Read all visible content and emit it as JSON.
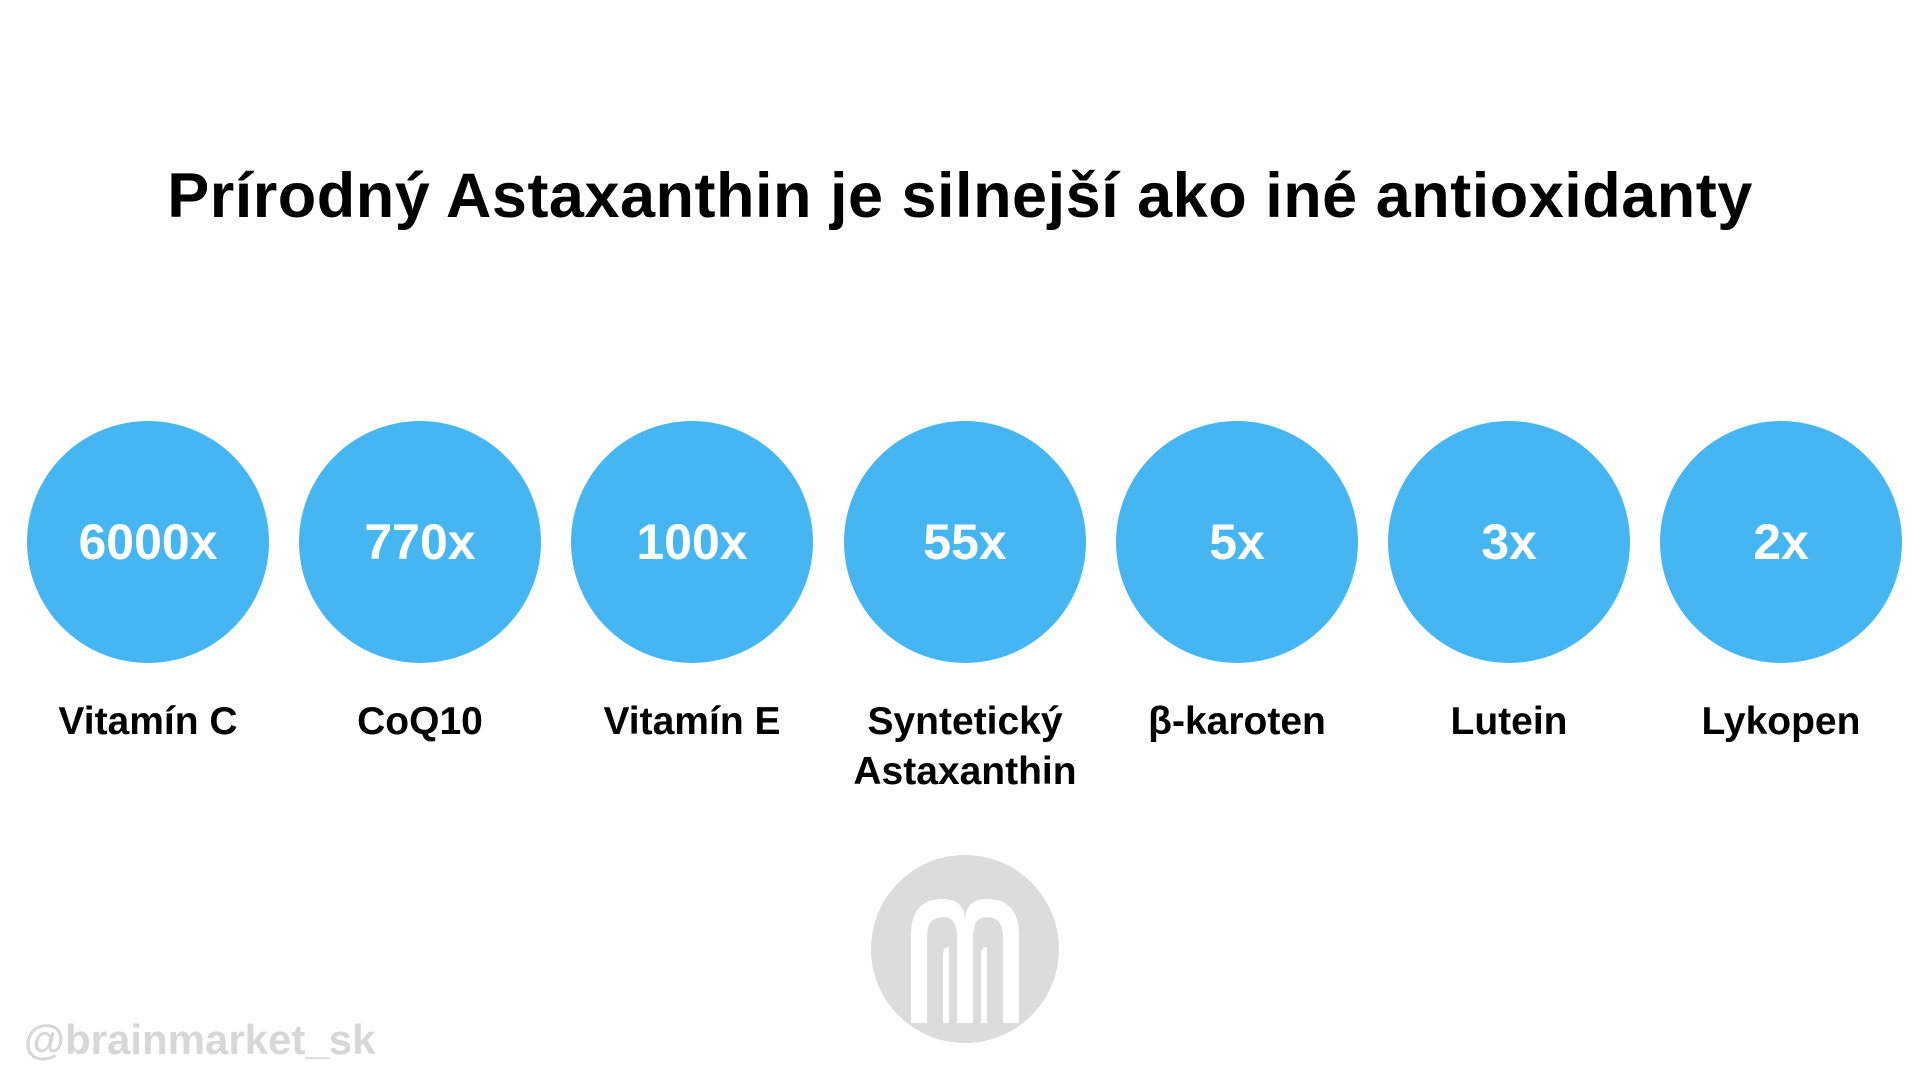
{
  "title": "Prírodný Astaxanthin je silnejší ako iné antioxidanty",
  "colors": {
    "circle": "#45b6f2",
    "factor_text": "#ffffff",
    "title_text": "#000000",
    "watermark": "#dcdcdc"
  },
  "items": [
    {
      "factor": "6000x",
      "label": "Vitamín C"
    },
    {
      "factor": "770x",
      "label": "CoQ10"
    },
    {
      "factor": "100x",
      "label": "Vitamín E"
    },
    {
      "factor": "55x",
      "label": "Syntetický\nAstaxanthin"
    },
    {
      "factor": "5x",
      "label": "β-karoten"
    },
    {
      "factor": "3x",
      "label": "Lutein"
    },
    {
      "factor": "2x",
      "label": "Lykopen"
    }
  ],
  "logo": {
    "icon": "brainmarket-logo-icon"
  },
  "handle": "@brainmarket_sk"
}
